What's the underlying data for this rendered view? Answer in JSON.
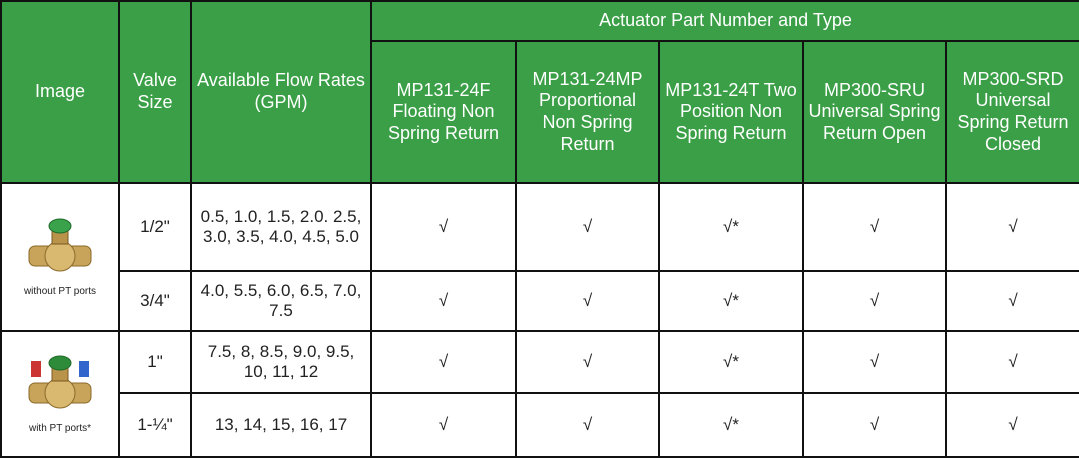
{
  "table": {
    "group_header": "Actuator Part Number and Type",
    "columns": [
      "Image",
      "Valve Size",
      "Available Flow Rates (GPM)",
      "MP131-24F Floating Non Spring Return",
      "MP131-24MP Proportional Non Spring Return",
      "MP131-24T Two Position Non Spring Return",
      "MP300-SRU Universal Spring Return Open",
      "MP300-SRD Universal Spring Return Closed"
    ],
    "image_captions": [
      "without PT ports",
      "with PT ports*"
    ],
    "rows": [
      [
        "1/2\"",
        "0.5, 1.0, 1.5, 2.0. 2.5, 3.0, 3.5, 4.0, 4.5, 5.0",
        "√",
        "√",
        "√*",
        "√",
        "√"
      ],
      [
        "3/4\"",
        "4.0, 5.5, 6.0, 6.5, 7.0, 7.5",
        "√",
        "√",
        "√*",
        "√",
        "√"
      ],
      [
        "1\"",
        "7.5, 8, 8.5, 9.0, 9.5, 10, 11, 12",
        "√",
        "√",
        "√*",
        "√",
        "√"
      ],
      [
        "1-¼\"",
        "13, 14, 15, 16, 17",
        "√",
        "√",
        "√*",
        "√",
        "√"
      ]
    ]
  }
}
